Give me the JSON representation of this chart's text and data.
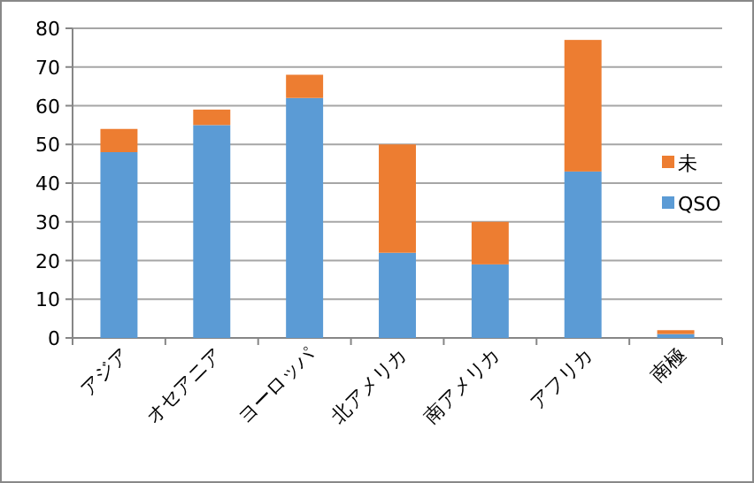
{
  "chart_data": {
    "type": "bar",
    "stacked": true,
    "categories": [
      "アジア",
      "オセアニア",
      "ヨーロッパ",
      "北アメリカ",
      "南アメリカ",
      "アフリカ",
      "南極"
    ],
    "series": [
      {
        "name": "QSO",
        "color": "#5b9bd5",
        "values": [
          48,
          55,
          62,
          22,
          19,
          43,
          1
        ]
      },
      {
        "name": "未",
        "color": "#ed7d31",
        "values": [
          6,
          4,
          6,
          28,
          11,
          34,
          1
        ]
      }
    ],
    "ylim": [
      0,
      80
    ],
    "yticks": [
      0,
      10,
      20,
      30,
      40,
      50,
      60,
      70,
      80
    ],
    "grid": "y",
    "legend": "right"
  }
}
